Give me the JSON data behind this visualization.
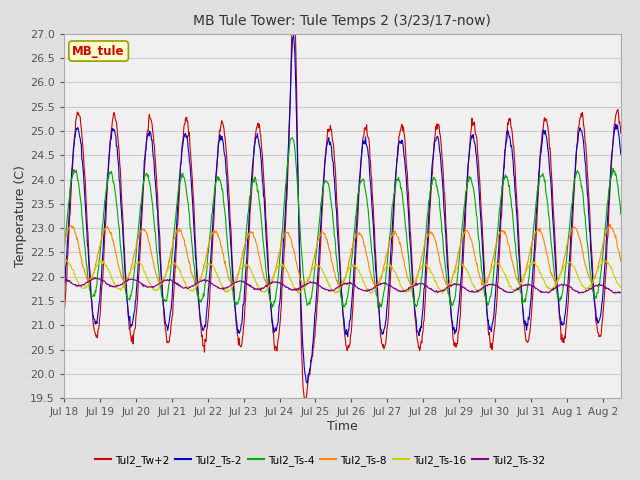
{
  "title": "MB Tule Tower: Tule Temps 2 (3/23/17-now)",
  "xlabel": "Time",
  "ylabel": "Temperature (C)",
  "ylim": [
    19.5,
    27.0
  ],
  "xtick_labels": [
    "Jul 18",
    "Jul 19",
    "Jul 20",
    "Jul 21",
    "Jul 22",
    "Jul 23",
    "Jul 24",
    "Jul 25",
    "Jul 26",
    "Jul 27",
    "Jul 28",
    "Jul 29",
    "Jul 30",
    "Jul 31",
    "Aug 1",
    "Aug 2"
  ],
  "background_color": "#e0e0e0",
  "plot_bg_color": "#f0f0f0",
  "grid_color": "#cccccc",
  "legend_label": "MB_tule",
  "series_colors": [
    "#cc0000",
    "#0000cc",
    "#00aa00",
    "#ff8800",
    "#cccc00",
    "#880088"
  ],
  "series_names": [
    "Tul2_Tw+2",
    "Tul2_Ts-2",
    "Tul2_Ts-4",
    "Tul2_Ts-8",
    "Tul2_Ts-16",
    "Tul2_Ts-32"
  ],
  "n_days": 15.5
}
